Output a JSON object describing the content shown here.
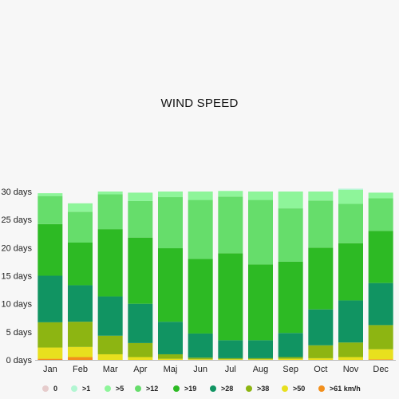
{
  "chart_data": {
    "type": "bar",
    "stacked": true,
    "title": "WIND SPEED",
    "xlabel": "",
    "ylabel": "",
    "ylim": [
      0,
      30
    ],
    "ytick_values": [
      0,
      5,
      10,
      15,
      20,
      25,
      30
    ],
    "ytick_labels": [
      "0 days",
      "5 days",
      "10 days",
      "15 days",
      "20 days",
      "25 days",
      "30 days"
    ],
    "categories": [
      "Jan",
      "Feb",
      "Mar",
      "Apr",
      "Maj",
      "Jun",
      "Jul",
      "Aug",
      "Sep",
      "Oct",
      "Nov",
      "Dec"
    ],
    "grid": false,
    "legend_position": "bottom",
    "series": [
      {
        "name": ">61 km/h",
        "color": "#f28f1c",
        "values": [
          0.2,
          0.5,
          0.0,
          0.0,
          0.0,
          0.0,
          0.0,
          0.0,
          0.0,
          0.0,
          0.0,
          0.1
        ]
      },
      {
        "name": ">50",
        "color": "#e8e01e",
        "values": [
          2.0,
          1.8,
          1.0,
          0.5,
          0.2,
          0.1,
          0.1,
          0.1,
          0.2,
          0.3,
          0.5,
          1.8
        ]
      },
      {
        "name": ">38",
        "color": "#8db512",
        "values": [
          4.5,
          4.5,
          3.3,
          2.5,
          0.8,
          0.3,
          0.2,
          0.2,
          0.3,
          2.3,
          2.6,
          4.3
        ]
      },
      {
        "name": ">28",
        "color": "#119462",
        "values": [
          8.3,
          6.5,
          7.0,
          7.0,
          5.8,
          4.3,
          3.2,
          3.2,
          4.3,
          6.4,
          7.5,
          7.5
        ]
      },
      {
        "name": ">19",
        "color": "#2dba24",
        "values": [
          9.2,
          7.6,
          12.0,
          11.8,
          13.1,
          13.3,
          15.5,
          13.5,
          12.7,
          11.0,
          10.2,
          9.3
        ]
      },
      {
        "name": ">12",
        "color": "#66dd6b",
        "values": [
          5.0,
          5.5,
          6.2,
          6.5,
          9.1,
          10.5,
          10.1,
          11.5,
          9.5,
          8.4,
          7.0,
          5.8
        ]
      },
      {
        "name": ">5",
        "color": "#8ef59a",
        "values": [
          0.5,
          1.5,
          0.5,
          1.5,
          1.0,
          1.5,
          1.0,
          1.5,
          3.0,
          1.6,
          2.5,
          1.0
        ]
      },
      {
        "name": ">1",
        "color": "#b2f6d2",
        "values": [
          0.0,
          0.0,
          0.0,
          0.0,
          0.0,
          0.0,
          0.0,
          0.0,
          0.0,
          0.0,
          0.2,
          0.0
        ]
      },
      {
        "name": "0",
        "color": "#e6cccc",
        "values": [
          0,
          0,
          0,
          0,
          0,
          0,
          0,
          0,
          0,
          0,
          0,
          0
        ]
      }
    ]
  }
}
